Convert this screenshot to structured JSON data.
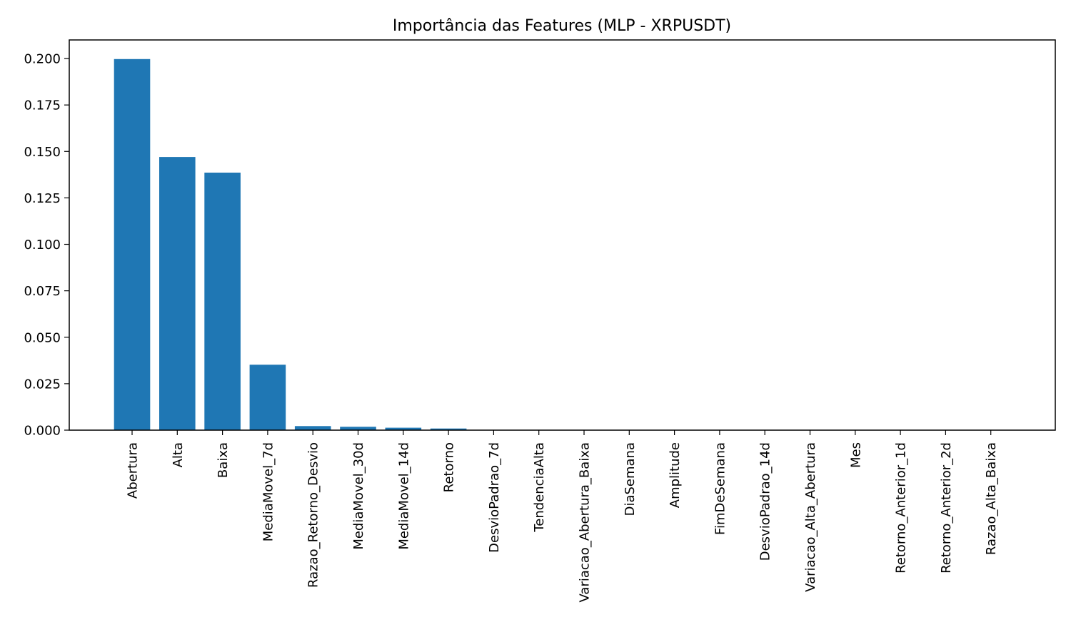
{
  "chart_data": {
    "type": "bar",
    "title": "Importância das Features (MLP - XRPUSDT)",
    "xlabel": "",
    "ylabel": "",
    "categories": [
      "Abertura",
      "Alta",
      "Baixa",
      "MediaMovel_7d",
      "Razao_Retorno_Desvio",
      "MediaMovel_30d",
      "MediaMovel_14d",
      "Retorno",
      "DesvioPadrao_7d",
      "TendenciaAlta",
      "Variacao_Abertura_Baixa",
      "DiaSemana",
      "Amplitude",
      "FimDeSemana",
      "DesvioPadrao_14d",
      "Variacao_Alta_Abertura",
      "Mes",
      "Retorno_Anterior_1d",
      "Retorno_Anterior_2d",
      "Razao_Alta_Baixa"
    ],
    "values": [
      0.1997,
      0.147,
      0.1386,
      0.0352,
      0.0022,
      0.0018,
      0.0013,
      0.0009,
      0.0002,
      0.0002,
      0.0001,
      0.0001,
      0.0001,
      0.0001,
      0.0001,
      0.0,
      0.0,
      0.0,
      0.0,
      0.0
    ],
    "ylim": [
      0,
      0.21
    ],
    "yticks": [
      "0.000",
      "0.025",
      "0.050",
      "0.075",
      "0.100",
      "0.125",
      "0.150",
      "0.175",
      "0.200"
    ],
    "grid": false,
    "bar_color": "#1f77b4"
  }
}
